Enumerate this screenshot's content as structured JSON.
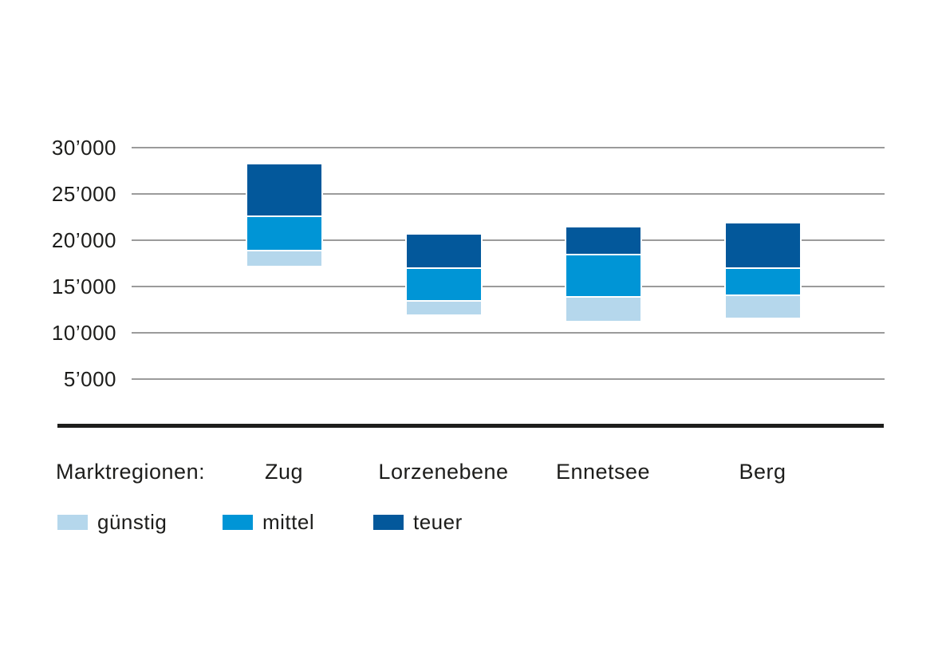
{
  "colors": {
    "text": "#1d1d1b",
    "gridline": "#9b9b9b",
    "baseline": "#1d1d1b",
    "background": "#ffffff",
    "bar_outline": "#ffffff"
  },
  "chart_data": {
    "type": "bar",
    "subtype": "stacked-floating-range",
    "title": "",
    "categories": [
      "Zug",
      "Lorzenebene",
      "Ennetsee",
      "Berg"
    ],
    "series": [
      {
        "name": "günstig",
        "color": "#b5d7ec",
        "ranges": [
          [
            17200,
            19000
          ],
          [
            12000,
            13500
          ],
          [
            11300,
            14000
          ],
          [
            11600,
            14100
          ]
        ]
      },
      {
        "name": "mittel",
        "color": "#0095d6",
        "ranges": [
          [
            19000,
            22700
          ],
          [
            13500,
            17100
          ],
          [
            14000,
            18500
          ],
          [
            14100,
            17100
          ]
        ]
      },
      {
        "name": "teuer",
        "color": "#03589b",
        "ranges": [
          [
            22700,
            28200
          ],
          [
            17100,
            20600
          ],
          [
            18500,
            21400
          ],
          [
            17100,
            21800
          ]
        ]
      }
    ],
    "y_axis": {
      "tick_labels": [
        "30’000",
        "25’000",
        "20’000",
        "15’000",
        "10’000",
        "5’000"
      ],
      "tick_values": [
        30000,
        25000,
        20000,
        15000,
        10000,
        5000
      ]
    },
    "x_axis": {
      "prefix_label": "Marktregionen:"
    },
    "grid": true,
    "legend_position": "bottom-left",
    "legend_items": [
      "günstig",
      "mittel",
      "teuer"
    ]
  }
}
